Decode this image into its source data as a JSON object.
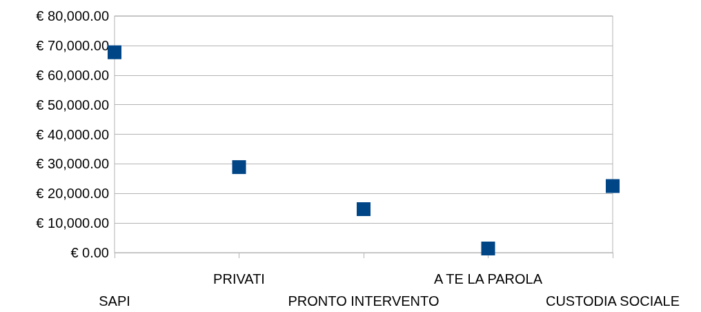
{
  "chart_data": {
    "type": "scatter",
    "categories": [
      "SAPI",
      "PRIVATI",
      "PRONTO INTERVENTO",
      "A TE LA PAROLA",
      "CUSTODIA SOCIALE"
    ],
    "series": [
      {
        "color": "#004586",
        "values": [
          67700,
          28900,
          14700,
          1400,
          22500
        ]
      }
    ],
    "ylim": [
      0,
      80000
    ],
    "yticks": [
      {
        "value": 0,
        "label": "€ 0.00"
      },
      {
        "value": 10000,
        "label": "€ 10,000.00"
      },
      {
        "value": 20000,
        "label": "€ 20,000.00"
      },
      {
        "value": 30000,
        "label": "€ 30,000.00"
      },
      {
        "value": 40000,
        "label": "€ 40,000.00"
      },
      {
        "value": 50000,
        "label": "€ 50,000.00"
      },
      {
        "value": 60000,
        "label": "€ 60,000.00"
      },
      {
        "value": 70000,
        "label": "€ 70,000.00"
      },
      {
        "value": 80000,
        "label": "€ 80,000.00"
      }
    ],
    "grid": "y",
    "marker": "square"
  }
}
